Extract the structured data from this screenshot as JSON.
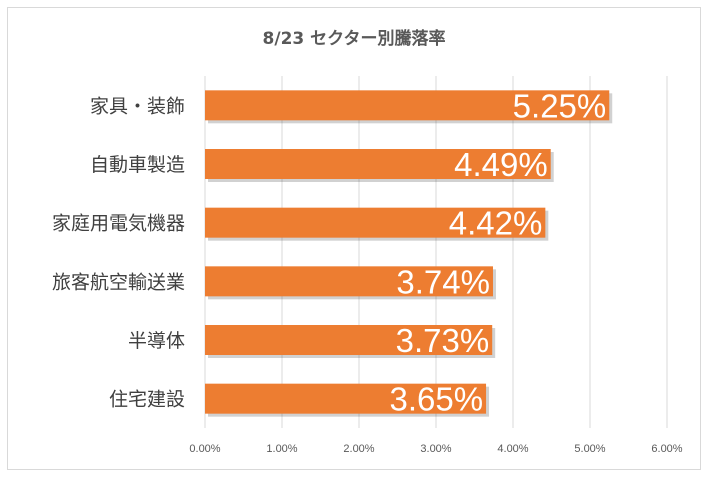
{
  "chart_data": {
    "type": "bar",
    "orientation": "horizontal",
    "title": "8/23 セクター別騰落率",
    "categories": [
      "家具・装飾",
      "自動車製造",
      "家庭用電気機器",
      "旅客航空輸送業",
      "半導体",
      "住宅建設"
    ],
    "values": [
      5.25,
      4.49,
      4.42,
      3.74,
      3.73,
      3.65
    ],
    "data_labels": [
      "5.25%",
      "4.49%",
      "4.42%",
      "3.74%",
      "3.73%",
      "3.65%"
    ],
    "xlim": [
      0,
      6
    ],
    "x_ticks": [
      "0.00%",
      "1.00%",
      "2.00%",
      "3.00%",
      "4.00%",
      "5.00%",
      "6.00%"
    ],
    "grid": "vertical",
    "bar_color": "#ED7D31",
    "legend": "none"
  }
}
